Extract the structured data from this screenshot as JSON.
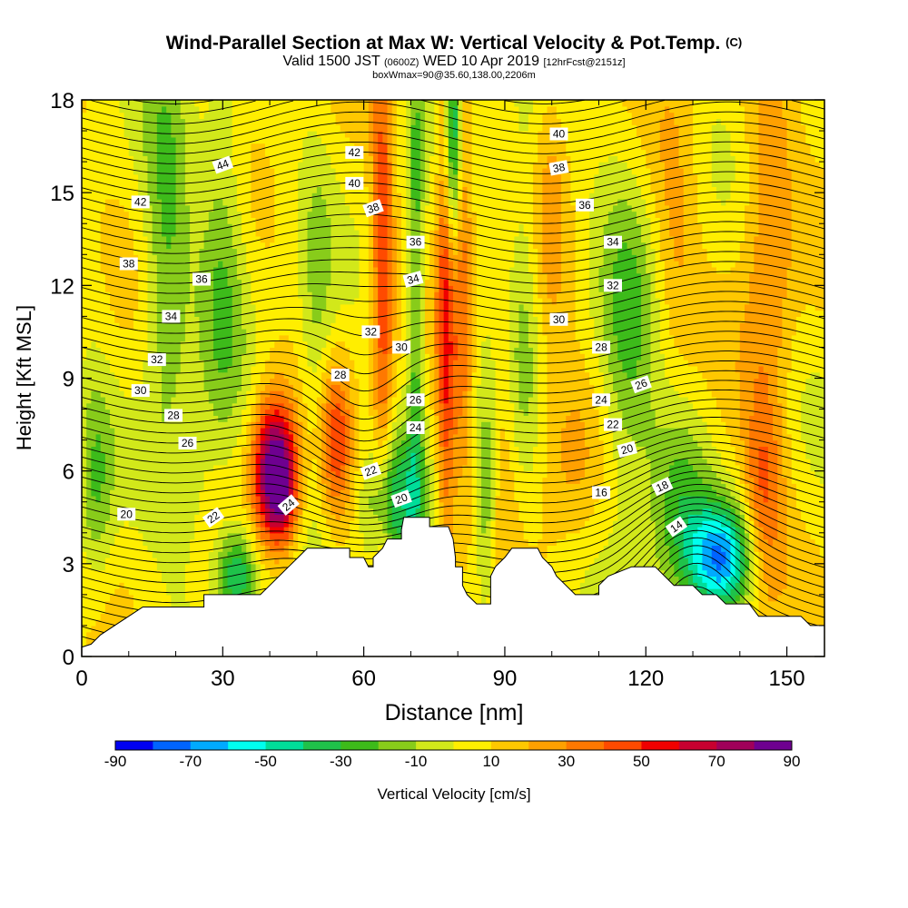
{
  "titles": {
    "main": "Wind-Parallel Section at Max W: Vertical Velocity & Pot.Temp.",
    "main_unit": "(C)",
    "valid_prefix": "Valid 1500 JST",
    "valid_utc": "(0600Z)",
    "valid_date": "WED 10 Apr 2019",
    "forecast_tag": "[12hrFcst@2151z]",
    "box_note": "boxWmax=90@35.60,138.00,2206m"
  },
  "colors": {
    "terrain": "#ffffff",
    "contour": "#000000",
    "frame": "#000000"
  },
  "colorbar": {
    "label": "Vertical Velocity [cm/s]",
    "tick_labels": [
      "-90",
      "-70",
      "-50",
      "-30",
      "-10",
      "10",
      "30",
      "50",
      "70",
      "90"
    ],
    "colors": [
      "#0000f0",
      "#0064ff",
      "#00aaff",
      "#00ffee",
      "#00dd99",
      "#1fc24a",
      "#3dbb1a",
      "#88cc1a",
      "#d2e81a",
      "#ffee00",
      "#ffc800",
      "#ffa000",
      "#ff7800",
      "#ff4a00",
      "#f00000",
      "#c80030",
      "#a0005a",
      "#6e0090"
    ]
  },
  "chart_data": {
    "type": "heatmap",
    "title": "Wind-Parallel Section at Max W: Vertical Velocity & Pot.Temp.",
    "xlabel": "Distance [nm]",
    "ylabel": "Height [Kft MSL]",
    "xlim": [
      0,
      158
    ],
    "ylim": [
      0,
      18
    ],
    "x_ticks": [
      0,
      30,
      60,
      90,
      120,
      150
    ],
    "y_ticks": [
      0,
      3,
      6,
      9,
      12,
      15,
      18
    ],
    "x_tick_labels": [
      "0",
      "30",
      "60",
      "90",
      "120",
      "150"
    ],
    "y_tick_labels": [
      "0",
      "3",
      "6",
      "9",
      "12",
      "15",
      "18"
    ],
    "fill_variable": "Vertical Velocity [cm/s]",
    "fill_range": [
      -90,
      90
    ],
    "fill_level_step": 10,
    "contour_variable": "Potential Temperature (C)",
    "contour_interval": 1,
    "terrain": [
      [
        0,
        0.3
      ],
      [
        2,
        0.4
      ],
      [
        4,
        0.7
      ],
      [
        7,
        1.0
      ],
      [
        10,
        1.3
      ],
      [
        13,
        1.6
      ],
      [
        26,
        1.6
      ],
      [
        26,
        2.0
      ],
      [
        38,
        2.0
      ],
      [
        40,
        2.3
      ],
      [
        42,
        2.6
      ],
      [
        44,
        2.9
      ],
      [
        46,
        3.2
      ],
      [
        48,
        3.5
      ],
      [
        57,
        3.5
      ],
      [
        57,
        3.2
      ],
      [
        60,
        3.2
      ],
      [
        61,
        2.9
      ],
      [
        62,
        2.9
      ],
      [
        62,
        3.2
      ],
      [
        64,
        3.5
      ],
      [
        65,
        3.8
      ],
      [
        68,
        3.8
      ],
      [
        68,
        4.1
      ],
      [
        68.5,
        4.5
      ],
      [
        74,
        4.5
      ],
      [
        74,
        4.2
      ],
      [
        78,
        4.2
      ],
      [
        79,
        3.8
      ],
      [
        79.5,
        3.2
      ],
      [
        79.5,
        2.9
      ],
      [
        81,
        2.9
      ],
      [
        81,
        2.3
      ],
      [
        82,
        2.0
      ],
      [
        84,
        1.7
      ],
      [
        87,
        1.7
      ],
      [
        87,
        2.6
      ],
      [
        88,
        2.9
      ],
      [
        90,
        3.2
      ],
      [
        91.5,
        3.5
      ],
      [
        93,
        3.5
      ],
      [
        97,
        3.5
      ],
      [
        98,
        3.2
      ],
      [
        100,
        2.9
      ],
      [
        101,
        2.6
      ],
      [
        103,
        2.3
      ],
      [
        105,
        2.0
      ],
      [
        110,
        2.0
      ],
      [
        110,
        2.3
      ],
      [
        112,
        2.6
      ],
      [
        117,
        2.9
      ],
      [
        122,
        2.9
      ],
      [
        124,
        2.6
      ],
      [
        126,
        2.3
      ],
      [
        130,
        2.3
      ],
      [
        132,
        2.0
      ],
      [
        135,
        2.0
      ],
      [
        137,
        1.7
      ],
      [
        142,
        1.7
      ],
      [
        144,
        1.3
      ],
      [
        153,
        1.3
      ],
      [
        155,
        1.0
      ],
      [
        158,
        1.0
      ]
    ],
    "w_features": [
      {
        "x": 41,
        "y": 6.0,
        "sx": 3.2,
        "sy": 1.6,
        "w": 92
      },
      {
        "x": 43,
        "y": 5.0,
        "sx": 2.0,
        "sy": 1.0,
        "w": 25
      },
      {
        "x": 54,
        "y": 7.0,
        "sx": 2.5,
        "sy": 1.8,
        "w": 38
      },
      {
        "x": 64,
        "y": 12.5,
        "sx": 1.6,
        "sy": 6.5,
        "w": 40
      },
      {
        "x": 71,
        "y": 11.0,
        "sx": 1.3,
        "sy": 7.0,
        "w": -32
      },
      {
        "x": 77.5,
        "y": 11.5,
        "sx": 1.4,
        "sy": 6.5,
        "w": 45
      },
      {
        "x": 79,
        "y": 17.0,
        "sx": 1.3,
        "sy": 3.0,
        "w": -58
      },
      {
        "x": 81,
        "y": 13.0,
        "sx": 1.5,
        "sy": 5.0,
        "w": 32
      },
      {
        "x": 18,
        "y": 13.0,
        "sx": 3.5,
        "sy": 5.0,
        "w": -28
      },
      {
        "x": 30,
        "y": 13.0,
        "sx": 3.5,
        "sy": 4.5,
        "w": -24
      },
      {
        "x": 50,
        "y": 10.0,
        "sx": 2.5,
        "sy": 4.5,
        "w": -18
      },
      {
        "x": 3,
        "y": 5.5,
        "sx": 2.5,
        "sy": 2.5,
        "w": -24
      },
      {
        "x": 24,
        "y": 5.0,
        "sx": 3.5,
        "sy": 2.0,
        "w": -12
      },
      {
        "x": 33,
        "y": 2.6,
        "sx": 3.0,
        "sy": 1.1,
        "w": -50
      },
      {
        "x": 66,
        "y": 5.0,
        "sx": 4.0,
        "sy": 1.5,
        "w": -42
      },
      {
        "x": 86,
        "y": 5.2,
        "sx": 1.6,
        "sy": 2.5,
        "w": -28
      },
      {
        "x": 94,
        "y": 12.5,
        "sx": 2.5,
        "sy": 5.0,
        "w": -16
      },
      {
        "x": 104,
        "y": 6.5,
        "sx": 4.5,
        "sy": 2.0,
        "w": 16
      },
      {
        "x": 116,
        "y": 9.5,
        "sx": 4.5,
        "sy": 4.5,
        "w": -26
      },
      {
        "x": 127,
        "y": 5.0,
        "sx": 4.5,
        "sy": 2.5,
        "w": -26
      },
      {
        "x": 136,
        "y": 3.2,
        "sx": 5.0,
        "sy": 1.2,
        "w": -68
      },
      {
        "x": 145,
        "y": 5.0,
        "sx": 3.0,
        "sy": 2.5,
        "w": 30
      },
      {
        "x": 146,
        "y": 13.5,
        "sx": 4.0,
        "sy": 5.0,
        "w": 24
      },
      {
        "x": 126,
        "y": 14.0,
        "sx": 3.5,
        "sy": 4.0,
        "w": 15
      },
      {
        "x": 100,
        "y": 14.0,
        "sx": 2.5,
        "sy": 4.0,
        "w": 14
      },
      {
        "x": 90,
        "y": 7.5,
        "sx": 2.0,
        "sy": 3.0,
        "w": 12
      }
    ],
    "contour_labels": [
      {
        "x": 30,
        "y": 15.9,
        "text": "44",
        "rot": -20
      },
      {
        "x": 58,
        "y": 16.3,
        "text": "42",
        "rot": 0
      },
      {
        "x": 12.5,
        "y": 14.7,
        "text": "42",
        "rot": 0
      },
      {
        "x": 58,
        "y": 15.3,
        "text": "40",
        "rot": 0
      },
      {
        "x": 62,
        "y": 14.5,
        "text": "38",
        "rot": -20
      },
      {
        "x": 10,
        "y": 12.7,
        "text": "38",
        "rot": 0
      },
      {
        "x": 25.5,
        "y": 12.2,
        "text": "36",
        "rot": 0
      },
      {
        "x": 71,
        "y": 13.4,
        "text": "36",
        "rot": 0
      },
      {
        "x": 70.5,
        "y": 12.2,
        "text": "34",
        "rot": -15
      },
      {
        "x": 19,
        "y": 11.0,
        "text": "34",
        "rot": 0
      },
      {
        "x": 61.5,
        "y": 10.5,
        "text": "32",
        "rot": 0
      },
      {
        "x": 16,
        "y": 9.6,
        "text": "32",
        "rot": 0
      },
      {
        "x": 68,
        "y": 10.0,
        "text": "30",
        "rot": 0
      },
      {
        "x": 12.5,
        "y": 8.6,
        "text": "30",
        "rot": 0
      },
      {
        "x": 55,
        "y": 9.1,
        "text": "28",
        "rot": 0
      },
      {
        "x": 19.5,
        "y": 7.8,
        "text": "28",
        "rot": 0
      },
      {
        "x": 71,
        "y": 8.3,
        "text": "26",
        "rot": 0
      },
      {
        "x": 22.5,
        "y": 6.9,
        "text": "26",
        "rot": 0
      },
      {
        "x": 71,
        "y": 7.4,
        "text": "24",
        "rot": 0
      },
      {
        "x": 44,
        "y": 4.9,
        "text": "24",
        "rot": -40
      },
      {
        "x": 61.5,
        "y": 6.0,
        "text": "22",
        "rot": -20
      },
      {
        "x": 28,
        "y": 4.5,
        "text": "22",
        "rot": -35
      },
      {
        "x": 68,
        "y": 5.1,
        "text": "20",
        "rot": -20
      },
      {
        "x": 9.5,
        "y": 4.6,
        "text": "20",
        "rot": 0
      },
      {
        "x": 101.5,
        "y": 16.9,
        "text": "40",
        "rot": 0
      },
      {
        "x": 101.5,
        "y": 15.8,
        "text": "38",
        "rot": -10
      },
      {
        "x": 107,
        "y": 14.6,
        "text": "36",
        "rot": 0
      },
      {
        "x": 113,
        "y": 13.4,
        "text": "34",
        "rot": 0
      },
      {
        "x": 113,
        "y": 12.0,
        "text": "32",
        "rot": 0
      },
      {
        "x": 101.5,
        "y": 10.9,
        "text": "30",
        "rot": 0
      },
      {
        "x": 110.5,
        "y": 10.0,
        "text": "28",
        "rot": 0
      },
      {
        "x": 119,
        "y": 8.8,
        "text": "26",
        "rot": -20
      },
      {
        "x": 110.5,
        "y": 8.3,
        "text": "24",
        "rot": 0
      },
      {
        "x": 113,
        "y": 7.5,
        "text": "22",
        "rot": 0
      },
      {
        "x": 116,
        "y": 6.7,
        "text": "20",
        "rot": -15
      },
      {
        "x": 123.5,
        "y": 5.5,
        "text": "18",
        "rot": -25
      },
      {
        "x": 110.5,
        "y": 5.3,
        "text": "16",
        "rot": 0
      },
      {
        "x": 126.5,
        "y": 4.2,
        "text": "14",
        "rot": -35
      }
    ]
  }
}
